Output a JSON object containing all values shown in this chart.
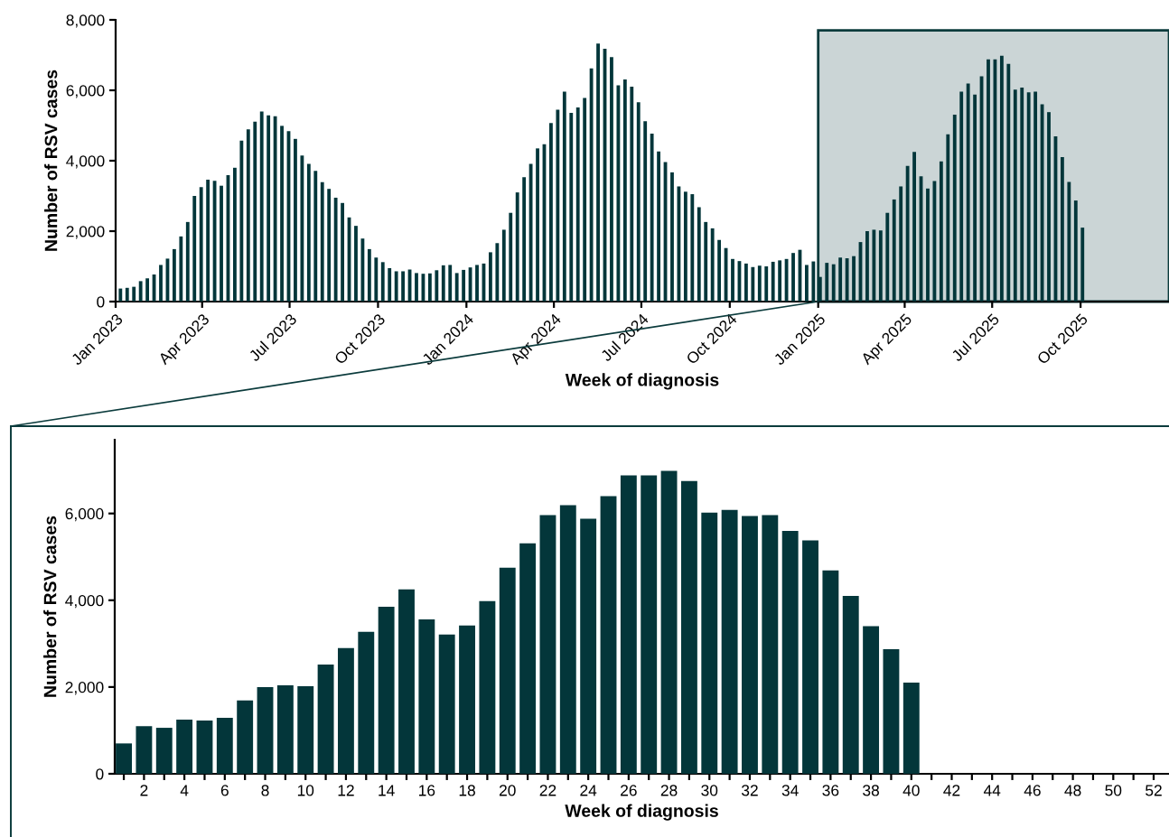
{
  "chart_data": [
    {
      "type": "bar",
      "xlabel": "Week of diagnosis",
      "ylabel": "Number of RSV cases",
      "color": "#03363a",
      "x": [
        "2023-01-06",
        "2023-01-13",
        "2023-01-20",
        "2023-01-27",
        "2023-02-03",
        "2023-02-10",
        "2023-02-17",
        "2023-02-24",
        "2023-03-03",
        "2023-03-10",
        "2023-03-17",
        "2023-03-24",
        "2023-03-31",
        "2023-04-07",
        "2023-04-14",
        "2023-04-21",
        "2023-04-28",
        "2023-05-05",
        "2023-05-12",
        "2023-05-19",
        "2023-05-26",
        "2023-06-02",
        "2023-06-09",
        "2023-06-16",
        "2023-06-23",
        "2023-06-30",
        "2023-07-07",
        "2023-07-14",
        "2023-07-21",
        "2023-07-28",
        "2023-08-04",
        "2023-08-11",
        "2023-08-18",
        "2023-08-25",
        "2023-09-01",
        "2023-09-08",
        "2023-09-15",
        "2023-09-22",
        "2023-09-29",
        "2023-10-06",
        "2023-10-13",
        "2023-10-20",
        "2023-10-27",
        "2023-11-03",
        "2023-11-10",
        "2023-11-17",
        "2023-11-24",
        "2023-12-01",
        "2023-12-08",
        "2023-12-15",
        "2023-12-22",
        "2023-12-29",
        "2024-01-05",
        "2024-01-12",
        "2024-01-19",
        "2024-01-26",
        "2024-02-02",
        "2024-02-09",
        "2024-02-16",
        "2024-02-23",
        "2024-03-01",
        "2024-03-08",
        "2024-03-15",
        "2024-03-22",
        "2024-03-29",
        "2024-04-05",
        "2024-04-12",
        "2024-04-19",
        "2024-04-26",
        "2024-05-03",
        "2024-05-10",
        "2024-05-17",
        "2024-05-24",
        "2024-05-31",
        "2024-06-07",
        "2024-06-14",
        "2024-06-21",
        "2024-06-28",
        "2024-07-05",
        "2024-07-12",
        "2024-07-19",
        "2024-07-26",
        "2024-08-02",
        "2024-08-09",
        "2024-08-16",
        "2024-08-23",
        "2024-08-30",
        "2024-09-06",
        "2024-09-13",
        "2024-09-20",
        "2024-09-27",
        "2024-10-04",
        "2024-10-11",
        "2024-10-18",
        "2024-10-25",
        "2024-11-01",
        "2024-11-08",
        "2024-11-15",
        "2024-11-22",
        "2024-11-29",
        "2024-12-06",
        "2024-12-13",
        "2024-12-20",
        "2024-12-27",
        "2025-01-03",
        "2025-01-10",
        "2025-01-17",
        "2025-01-24",
        "2025-01-31",
        "2025-02-07",
        "2025-02-14",
        "2025-02-21",
        "2025-02-28",
        "2025-03-07",
        "2025-03-14",
        "2025-03-21",
        "2025-03-28",
        "2025-04-04",
        "2025-04-11",
        "2025-04-18",
        "2025-04-25",
        "2025-05-02",
        "2025-05-09",
        "2025-05-16",
        "2025-05-23",
        "2025-05-30",
        "2025-06-06",
        "2025-06-13",
        "2025-06-20",
        "2025-06-27",
        "2025-07-04",
        "2025-07-11",
        "2025-07-18",
        "2025-07-25",
        "2025-08-01",
        "2025-08-08",
        "2025-08-15",
        "2025-08-22",
        "2025-08-29",
        "2025-09-05",
        "2025-09-12",
        "2025-09-19",
        "2025-09-26",
        "2025-10-03"
      ],
      "values": [
        370,
        390,
        420,
        580,
        660,
        770,
        1040,
        1220,
        1490,
        1850,
        2260,
        3000,
        3250,
        3460,
        3430,
        3290,
        3590,
        3800,
        4570,
        4890,
        5110,
        5400,
        5290,
        5260,
        4990,
        4840,
        4620,
        4150,
        3910,
        3710,
        3390,
        3200,
        2950,
        2800,
        2390,
        2150,
        1790,
        1490,
        1250,
        1120,
        950,
        860,
        860,
        910,
        810,
        790,
        800,
        890,
        1030,
        1040,
        810,
        900,
        970,
        1040,
        1080,
        1400,
        1660,
        2040,
        2520,
        3100,
        3530,
        3910,
        4350,
        4470,
        5070,
        5450,
        5960,
        5360,
        5510,
        5780,
        6620,
        7330,
        7180,
        6940,
        6140,
        6310,
        6100,
        5660,
        5120,
        4770,
        4260,
        3960,
        3670,
        3270,
        3120,
        3050,
        2680,
        2260,
        2080,
        1750,
        1520,
        1210,
        1150,
        1080,
        980,
        1020,
        1000,
        1130,
        1170,
        1210,
        1380,
        1470,
        1040,
        1140,
        700,
        1100,
        1060,
        1250,
        1230,
        1290,
        1690,
        2000,
        2040,
        2020,
        2520,
        2900,
        3270,
        3850,
        4250,
        3560,
        3210,
        3420,
        3980,
        4750,
        5310,
        5960,
        6190,
        5880,
        6400,
        6880,
        6880,
        6980,
        6750,
        6020,
        6080,
        5940,
        5960,
        5600,
        5380,
        4690,
        4100,
        3400,
        2870,
        2100
      ],
      "xlim": [
        "2023-01-01",
        "2026-01-01"
      ],
      "xticks": [
        {
          "value": "2023-01-01",
          "label": "Jan 2023"
        },
        {
          "value": "2023-04-01",
          "label": "Apr 2023"
        },
        {
          "value": "2023-07-01",
          "label": "Jul 2023"
        },
        {
          "value": "2023-10-01",
          "label": "Oct 2023"
        },
        {
          "value": "2024-01-01",
          "label": "Jan 2024"
        },
        {
          "value": "2024-04-01",
          "label": "Apr 2024"
        },
        {
          "value": "2024-07-01",
          "label": "Jul 2024"
        },
        {
          "value": "2024-10-01",
          "label": "Oct 2024"
        },
        {
          "value": "2025-01-01",
          "label": "Jan 2025"
        },
        {
          "value": "2025-04-01",
          "label": "Apr 2025"
        },
        {
          "value": "2025-07-01",
          "label": "Jul 2025"
        },
        {
          "value": "2025-10-01",
          "label": "Oct 2025"
        }
      ],
      "ylim": [
        0,
        8000
      ],
      "yticks": [
        0,
        {
          "value": 2000,
          "label": "2,000"
        },
        {
          "value": 4000,
          "label": "4,000"
        },
        {
          "value": 6000,
          "label": "6,000"
        },
        {
          "value": 8000,
          "label": "8,000"
        }
      ],
      "bands": [
        {
          "axis": "x",
          "from": "2025-01-01",
          "to": "2026-01-01",
          "color": "#cbd5d6"
        }
      ],
      "grid": false
    },
    {
      "type": "bar",
      "xlabel": "Week of diagnosis",
      "ylabel": "Number of RSV cases",
      "color": "#03363a",
      "categories": [
        null,
        "2",
        null,
        "4",
        null,
        "6",
        null,
        "8",
        null,
        "10",
        null,
        "12",
        null,
        "14",
        null,
        "16",
        null,
        "18",
        null,
        "20",
        null,
        "22",
        null,
        "24",
        null,
        "26",
        null,
        "28",
        null,
        "30",
        null,
        "32",
        null,
        "34",
        null,
        "36",
        null,
        "38",
        null,
        "40",
        null,
        "42",
        null,
        "44",
        null,
        "46",
        null,
        "48",
        null,
        "50",
        null,
        "52"
      ],
      "values": [
        700,
        1100,
        1060,
        1250,
        1230,
        1290,
        1690,
        2000,
        2040,
        2020,
        2520,
        2900,
        3270,
        3850,
        4250,
        3560,
        3210,
        3420,
        3980,
        4750,
        5310,
        5960,
        6190,
        5880,
        6400,
        6880,
        6880,
        6980,
        6750,
        6020,
        6080,
        5940,
        5960,
        5600,
        5380,
        4690,
        4100,
        3400,
        2870,
        2100,
        null,
        null,
        null,
        null,
        null,
        null,
        null,
        null,
        null,
        null,
        null,
        null
      ],
      "ylim": [
        0,
        7700
      ],
      "yticks": [
        0,
        {
          "value": 2000,
          "label": "2,000"
        },
        {
          "value": 4000,
          "label": "4,000"
        },
        {
          "value": 6000,
          "label": "6,000"
        }
      ],
      "grid": false
    }
  ]
}
